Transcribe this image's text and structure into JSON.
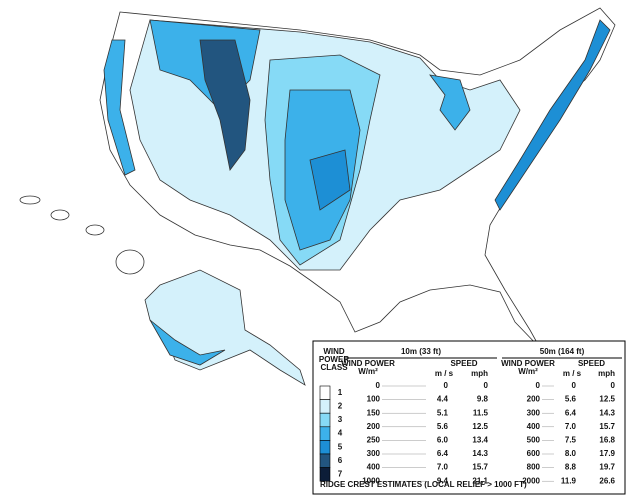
{
  "legend": {
    "class_header": [
      "WIND",
      "POWER",
      "CLASS"
    ],
    "groups": [
      {
        "title": "10m (33 ft)",
        "power_header": "WIND POWER",
        "power_unit": "W/m²",
        "speed_header": "SPEED",
        "speed_units": [
          "m / s",
          "mph"
        ],
        "power": [
          "0",
          "100",
          "150",
          "200",
          "250",
          "300",
          "400",
          "1000"
        ],
        "ms": [
          "0",
          "4.4",
          "5.1",
          "5.6",
          "6.0",
          "6.4",
          "7.0",
          "9.4"
        ],
        "mph": [
          "0",
          "9.8",
          "11.5",
          "12.5",
          "13.4",
          "14.3",
          "15.7",
          "21.1"
        ]
      },
      {
        "title": "50m (164 ft)",
        "power_header": "WIND POWER",
        "power_unit": "W/m²",
        "speed_header": "SPEED",
        "speed_units": [
          "m / s",
          "mph"
        ],
        "power": [
          "0",
          "200",
          "300",
          "400",
          "500",
          "600",
          "800",
          "2000"
        ],
        "ms": [
          "0",
          "5.6",
          "6.4",
          "7.0",
          "7.5",
          "8.0",
          "8.8",
          "11.9"
        ],
        "mph": [
          "0",
          "12.5",
          "14.3",
          "15.7",
          "16.8",
          "17.9",
          "19.7",
          "26.6"
        ]
      }
    ],
    "classes": [
      {
        "label": "1",
        "color": "#ffffff"
      },
      {
        "label": "2",
        "color": "#d4f1fb"
      },
      {
        "label": "3",
        "color": "#86daf6"
      },
      {
        "label": "4",
        "color": "#3cb1ea"
      },
      {
        "label": "5",
        "color": "#1d8fd5"
      },
      {
        "label": "6",
        "color": "#22557f"
      },
      {
        "label": "7",
        "color": "#0c1d38"
      }
    ],
    "footer": "RIDGE CREST ESTIMATES (LOCAL RELIEF > 1000 FT)"
  }
}
